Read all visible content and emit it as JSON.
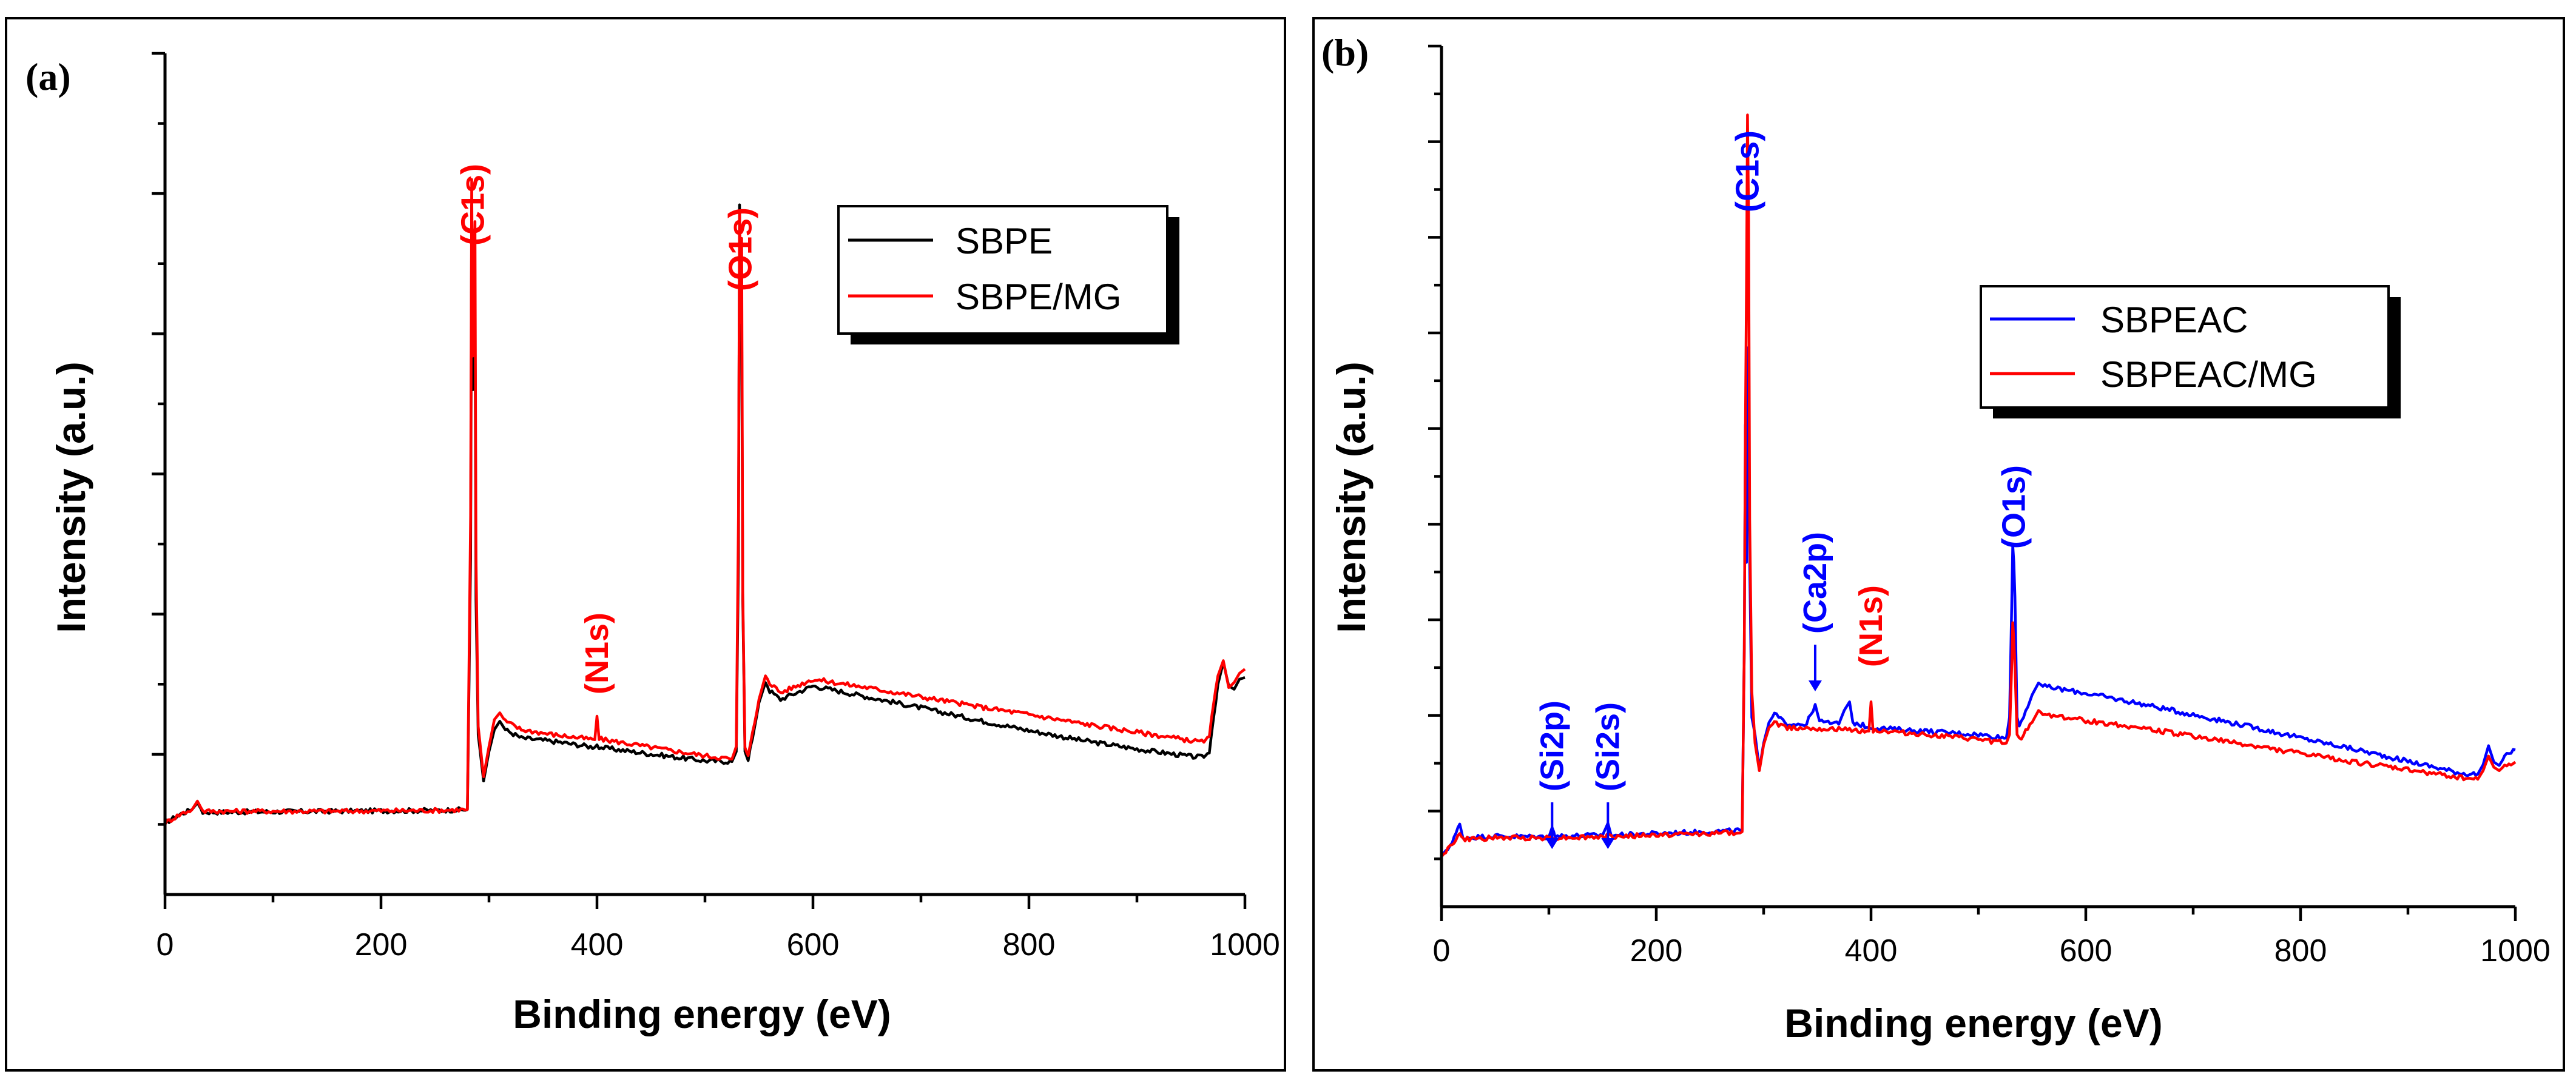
{
  "chart_data": [
    {
      "type": "line",
      "panel_label": "(a)",
      "xlabel": "Binding energy (eV)",
      "ylabel": "Intensity (a.u.)",
      "xlim": [
        0,
        1000
      ],
      "ylim": [
        0,
        100
      ],
      "xticks": [
        0,
        200,
        400,
        600,
        800,
        1000
      ],
      "xtick_labels": [
        "0",
        "200",
        "400",
        "600",
        "800",
        "1000"
      ],
      "legend": {
        "location": "top-right",
        "entries": [
          "SBPE",
          "SBPE/MG"
        ]
      },
      "series": [
        {
          "name": "SBPE",
          "color": "#000000",
          "points": [
            [
              0,
              8.5
            ],
            [
              15,
              9.6
            ],
            [
              25,
              10.1
            ],
            [
              30,
              10.9
            ],
            [
              35,
              9.8
            ],
            [
              60,
              9.8
            ],
            [
              150,
              9.9
            ],
            [
              250,
              10.0
            ],
            [
              280,
              10.1
            ],
            [
              283,
              40
            ],
            [
              284,
              82
            ],
            [
              285,
              60
            ],
            [
              287,
              72
            ],
            [
              288,
              35
            ],
            [
              290,
              19
            ],
            [
              295,
              13.5
            ],
            [
              300,
              17
            ],
            [
              305,
              19.6
            ],
            [
              310,
              20.6
            ],
            [
              315,
              19.6
            ],
            [
              330,
              18.6
            ],
            [
              360,
              18.2
            ],
            [
              398,
              17.5
            ],
            [
              400,
              17.8
            ],
            [
              402,
              17.5
            ],
            [
              450,
              16.7
            ],
            [
              500,
              15.9
            ],
            [
              525,
              15.8
            ],
            [
              529,
              17
            ],
            [
              531,
              40
            ],
            [
              532,
              82
            ],
            [
              533,
              67
            ],
            [
              534,
              70
            ],
            [
              535,
              35
            ],
            [
              537,
              17
            ],
            [
              540,
              15.9
            ],
            [
              550,
              22.8
            ],
            [
              556,
              25.2
            ],
            [
              560,
              24.2
            ],
            [
              570,
              23.2
            ],
            [
              600,
              24.8
            ],
            [
              650,
              23.5
            ],
            [
              700,
              22.2
            ],
            [
              750,
              20.8
            ],
            [
              800,
              19.5
            ],
            [
              850,
              18.3
            ],
            [
              900,
              17.3
            ],
            [
              950,
              16.4
            ],
            [
              962,
              16.3
            ],
            [
              967,
              17
            ],
            [
              975,
              25
            ],
            [
              980,
              27.6
            ],
            [
              985,
              24.8
            ],
            [
              990,
              24.4
            ],
            [
              995,
              25.6
            ],
            [
              1000,
              25.8
            ]
          ]
        },
        {
          "name": "SBPE/MG",
          "color": "#ff0000",
          "points": [
            [
              0,
              8.5
            ],
            [
              15,
              9.6
            ],
            [
              25,
              10.1
            ],
            [
              30,
              11.1
            ],
            [
              35,
              9.9
            ],
            [
              60,
              9.9
            ],
            [
              150,
              9.9
            ],
            [
              250,
              10.0
            ],
            [
              280,
              10.1
            ],
            [
              283,
              45
            ],
            [
              284,
              85
            ],
            [
              285,
              64
            ],
            [
              287,
              80
            ],
            [
              288,
              40
            ],
            [
              290,
              20
            ],
            [
              295,
              14
            ],
            [
              300,
              17.6
            ],
            [
              305,
              20.8
            ],
            [
              310,
              21.6
            ],
            [
              315,
              20.6
            ],
            [
              330,
              19.6
            ],
            [
              360,
              19.0
            ],
            [
              398,
              18.4
            ],
            [
              400,
              21.2
            ],
            [
              402,
              18.5
            ],
            [
              450,
              17.5
            ],
            [
              500,
              16.5
            ],
            [
              525,
              16.1
            ],
            [
              529,
              17.6
            ],
            [
              531,
              45
            ],
            [
              532,
              81
            ],
            [
              533,
              68
            ],
            [
              534,
              78
            ],
            [
              535,
              36
            ],
            [
              537,
              17.5
            ],
            [
              540,
              16.4
            ],
            [
              550,
              23.2
            ],
            [
              556,
              26
            ],
            [
              560,
              25.2
            ],
            [
              570,
              24.0
            ],
            [
              600,
              25.6
            ],
            [
              650,
              24.6
            ],
            [
              700,
              23.5
            ],
            [
              750,
              22.4
            ],
            [
              800,
              21.4
            ],
            [
              850,
              20.3
            ],
            [
              900,
              19.3
            ],
            [
              950,
              18.3
            ],
            [
              962,
              18.1
            ],
            [
              967,
              19
            ],
            [
              975,
              26
            ],
            [
              980,
              27.8
            ],
            [
              985,
              24.6
            ],
            [
              990,
              25.2
            ],
            [
              995,
              26.3
            ],
            [
              1000,
              26.8
            ]
          ]
        }
      ],
      "annotations": [
        {
          "text": "(C1s)",
          "x": 285,
          "color": "#ff0000"
        },
        {
          "text": "(N1s)",
          "x": 400,
          "color": "#ff0000"
        },
        {
          "text": "(O1s)",
          "x": 533,
          "color": "#ff0000"
        }
      ]
    },
    {
      "type": "line",
      "panel_label": "(b)",
      "xlabel": "Binding energy (eV)",
      "ylabel": "Intensity (a.u.)",
      "xlim": [
        0,
        1000
      ],
      "ylim": [
        0,
        100
      ],
      "xticks": [
        0,
        200,
        400,
        600,
        800,
        1000
      ],
      "xtick_labels": [
        "0",
        "200",
        "400",
        "600",
        "800",
        "1000"
      ],
      "legend": {
        "location": "top-right",
        "entries": [
          "SBPEAC",
          "SBPEAC/MG"
        ]
      },
      "series": [
        {
          "name": "SBPEAC",
          "color": "#0000ff",
          "points": [
            [
              0,
              6
            ],
            [
              10,
              7.4
            ],
            [
              17,
              9.6
            ],
            [
              20,
              8
            ],
            [
              50,
              8.2
            ],
            [
              100,
              8.1
            ],
            [
              103,
              9.2
            ],
            [
              106,
              8.2
            ],
            [
              150,
              8.3
            ],
            [
              155,
              9.7
            ],
            [
              158,
              8.3
            ],
            [
              200,
              8.5
            ],
            [
              270,
              8.8
            ],
            [
              280,
              8.9
            ],
            [
              282,
              30
            ],
            [
              283,
              56
            ],
            [
              284,
              40
            ],
            [
              285,
              52
            ],
            [
              286,
              65
            ],
            [
              287,
              40
            ],
            [
              289,
              22
            ],
            [
              292,
              20
            ],
            [
              296,
              16
            ],
            [
              300,
              19
            ],
            [
              305,
              21.4
            ],
            [
              310,
              22.4
            ],
            [
              320,
              21.3
            ],
            [
              340,
              21.2
            ],
            [
              348,
              23.5
            ],
            [
              352,
              21.5
            ],
            [
              370,
              21.2
            ],
            [
              375,
              22.8
            ],
            [
              380,
              23.8
            ],
            [
              383,
              21.4
            ],
            [
              400,
              20.8
            ],
            [
              450,
              20.4
            ],
            [
              500,
              20.0
            ],
            [
              526,
              19.6
            ],
            [
              529,
              22
            ],
            [
              531,
              35
            ],
            [
              532,
              42
            ],
            [
              533,
              40
            ],
            [
              534,
              36
            ],
            [
              536,
              22
            ],
            [
              538,
              21
            ],
            [
              550,
              24.6
            ],
            [
              556,
              26
            ],
            [
              560,
              25.6
            ],
            [
              600,
              24.8
            ],
            [
              650,
              23.6
            ],
            [
              700,
              22.3
            ],
            [
              750,
              21.0
            ],
            [
              800,
              19.6
            ],
            [
              850,
              18.3
            ],
            [
              900,
              16.9
            ],
            [
              950,
              15.5
            ],
            [
              965,
              15.4
            ],
            [
              970,
              16.5
            ],
            [
              975,
              18.7
            ],
            [
              980,
              16.8
            ],
            [
              985,
              16.4
            ],
            [
              990,
              17.4
            ],
            [
              1000,
              18.2
            ]
          ]
        },
        {
          "name": "SBPEAC/MG",
          "color": "#ff0000",
          "points": [
            [
              0,
              6
            ],
            [
              10,
              7.2
            ],
            [
              17,
              8.5
            ],
            [
              20,
              7.8
            ],
            [
              50,
              8.0
            ],
            [
              100,
              8.0
            ],
            [
              150,
              8.1
            ],
            [
              200,
              8.3
            ],
            [
              270,
              8.6
            ],
            [
              280,
              8.7
            ],
            [
              282,
              30
            ],
            [
              283,
              55
            ],
            [
              284,
              72
            ],
            [
              285,
              92
            ],
            [
              286,
              80
            ],
            [
              287,
              45
            ],
            [
              289,
              25
            ],
            [
              292,
              19
            ],
            [
              296,
              15.8
            ],
            [
              300,
              18.8
            ],
            [
              305,
              20.8
            ],
            [
              310,
              21.4
            ],
            [
              320,
              20.8
            ],
            [
              340,
              20.8
            ],
            [
              370,
              20.6
            ],
            [
              398,
              20.4
            ],
            [
              400,
              23.8
            ],
            [
              402,
              20.5
            ],
            [
              450,
              20.0
            ],
            [
              500,
              19.4
            ],
            [
              526,
              19.0
            ],
            [
              529,
              20
            ],
            [
              531,
              28
            ],
            [
              532,
              33
            ],
            [
              533,
              31
            ],
            [
              534,
              28
            ],
            [
              536,
              20
            ],
            [
              538,
              19.4
            ],
            [
              550,
              21.4
            ],
            [
              556,
              22.8
            ],
            [
              560,
              22.4
            ],
            [
              600,
              21.6
            ],
            [
              650,
              20.8
            ],
            [
              700,
              19.8
            ],
            [
              750,
              18.8
            ],
            [
              800,
              17.8
            ],
            [
              850,
              16.8
            ],
            [
              900,
              15.9
            ],
            [
              950,
              15.0
            ],
            [
              965,
              14.8
            ],
            [
              970,
              15.8
            ],
            [
              975,
              17.5
            ],
            [
              980,
              16.2
            ],
            [
              985,
              15.8
            ],
            [
              990,
              16.4
            ],
            [
              1000,
              16.8
            ]
          ]
        }
      ],
      "annotations": [
        {
          "text": "(Si2p)",
          "x": 103,
          "color": "#0000ff",
          "arrow": true
        },
        {
          "text": "(Si2s)",
          "x": 155,
          "color": "#0000ff",
          "arrow": true
        },
        {
          "text": "(C1s)",
          "x": 285,
          "color": "#0000ff"
        },
        {
          "text": "(Ca2p)",
          "x": 348,
          "color": "#0000ff",
          "arrow": true
        },
        {
          "text": "(N1s)",
          "x": 400,
          "color": "#ff0000"
        },
        {
          "text": "(O1s)",
          "x": 533,
          "color": "#0000ff"
        }
      ]
    }
  ]
}
